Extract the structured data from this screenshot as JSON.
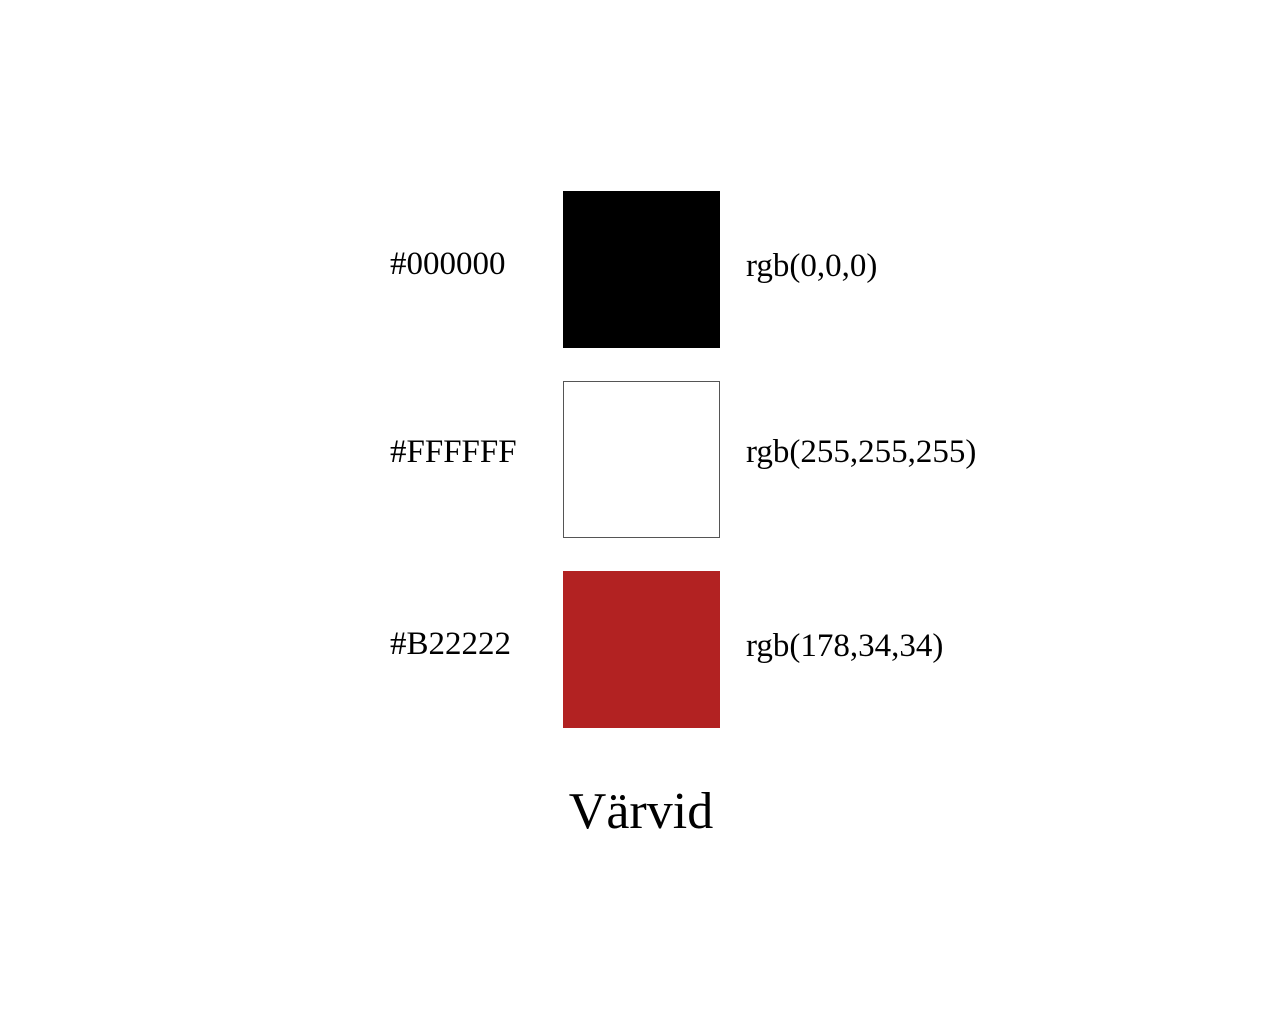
{
  "swatches": [
    {
      "hex_label": "#000000",
      "rgb_label": "rgb(0,0,0)",
      "color": "#000000",
      "bordered": false
    },
    {
      "hex_label": "#FFFFFF",
      "rgb_label": "rgb(255,255,255)",
      "color": "#FFFFFF",
      "bordered": true
    },
    {
      "hex_label": "#B22222",
      "rgb_label": "rgb(178,34,34)",
      "color": "#B22222",
      "bordered": false
    }
  ],
  "title": "Värvid"
}
